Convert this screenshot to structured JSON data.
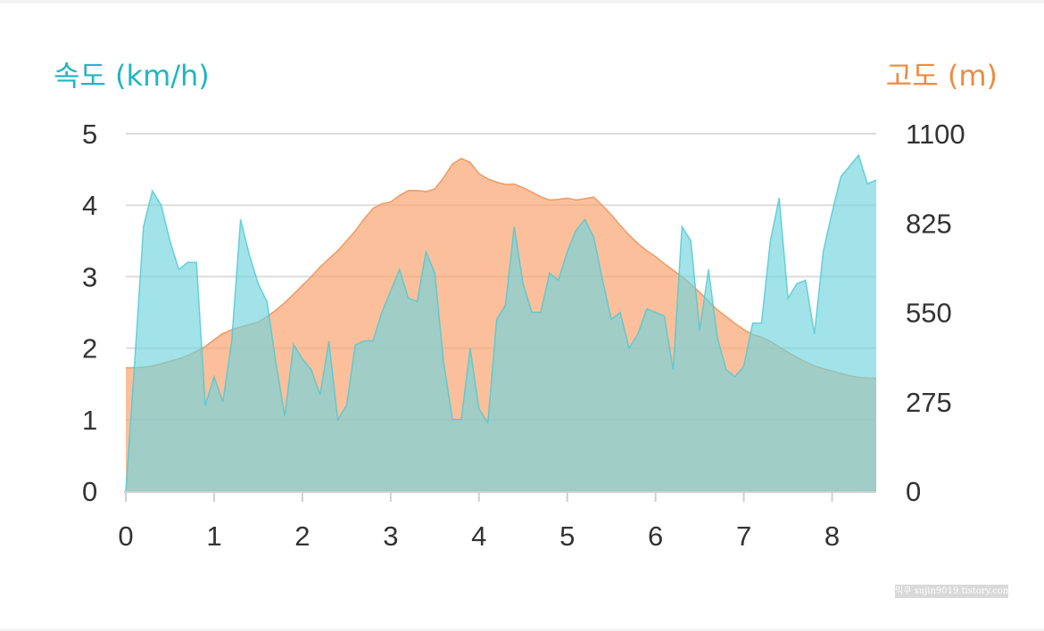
{
  "chart_data": {
    "type": "area",
    "left_axis": {
      "title": "속도 (km/h)",
      "color": "#1fb6c1",
      "ylim": [
        0,
        5
      ],
      "ticks": [
        "0",
        "1",
        "2",
        "3",
        "4",
        "5"
      ]
    },
    "right_axis": {
      "title": "고도 (m)",
      "color": "#ef8a3f",
      "ylim": [
        0,
        1100
      ],
      "ticks": [
        "0",
        "275",
        "550",
        "825",
        "1100"
      ]
    },
    "x_axis": {
      "xlim": [
        0,
        8.5
      ],
      "ticks": [
        "0",
        "1",
        "2",
        "3",
        "4",
        "5",
        "6",
        "7",
        "8"
      ]
    },
    "grid": true,
    "series": [
      {
        "axis": "right",
        "fill": "#f9a571",
        "stroke": "#ee8a4b",
        "x": [
          0,
          0.1,
          0.2,
          0.3,
          0.4,
          0.5,
          0.6,
          0.7,
          0.8,
          0.9,
          1.0,
          1.1,
          1.2,
          1.3,
          1.4,
          1.5,
          1.6,
          1.7,
          1.8,
          1.9,
          2.0,
          2.1,
          2.2,
          2.3,
          2.4,
          2.5,
          2.6,
          2.7,
          2.8,
          2.9,
          3.0,
          3.1,
          3.2,
          3.3,
          3.4,
          3.5,
          3.6,
          3.7,
          3.8,
          3.9,
          4.0,
          4.1,
          4.2,
          4.3,
          4.4,
          4.5,
          4.6,
          4.7,
          4.8,
          4.9,
          5.0,
          5.1,
          5.2,
          5.3,
          5.4,
          5.5,
          5.6,
          5.7,
          5.8,
          5.9,
          6.0,
          6.1,
          6.2,
          6.3,
          6.4,
          6.5,
          6.6,
          6.7,
          6.8,
          6.9,
          7.0,
          7.1,
          7.2,
          7.3,
          7.4,
          7.5,
          7.6,
          7.7,
          7.8,
          7.9,
          8.0,
          8.1,
          8.2,
          8.3,
          8.4,
          8.5
        ],
        "values": [
          379,
          380,
          381,
          385,
          392,
          400,
          407,
          417,
          430,
          445,
          466,
          485,
          497,
          505,
          513,
          520,
          537,
          557,
          580,
          606,
          633,
          660,
          690,
          715,
          740,
          770,
          801,
          838,
          870,
          884,
          890,
          910,
          925,
          925,
          922,
          930,
          965,
          1007,
          1024,
          1012,
          977,
          961,
          951,
          944,
          945,
          934,
          920,
          906,
          896,
          898,
          902,
          896,
          900,
          905,
          878,
          850,
          818,
          788,
          762,
          740,
          722,
          700,
          680,
          660,
          637,
          612,
          585,
          558,
          537,
          516,
          497,
          482,
          474,
          461,
          444,
          427,
          412,
          398,
          385,
          377,
          370,
          362,
          355,
          350,
          348,
          347
        ]
      },
      {
        "axis": "left",
        "fill": "#6fd4dd",
        "stroke": "#4cc8d3",
        "x": [
          0,
          0.1,
          0.2,
          0.3,
          0.4,
          0.5,
          0.6,
          0.7,
          0.8,
          0.9,
          1.0,
          1.1,
          1.2,
          1.3,
          1.4,
          1.5,
          1.6,
          1.7,
          1.8,
          1.9,
          2.0,
          2.1,
          2.2,
          2.3,
          2.4,
          2.5,
          2.6,
          2.7,
          2.8,
          2.9,
          3.0,
          3.1,
          3.2,
          3.3,
          3.4,
          3.5,
          3.6,
          3.7,
          3.8,
          3.9,
          4.0,
          4.1,
          4.2,
          4.3,
          4.4,
          4.5,
          4.6,
          4.7,
          4.8,
          4.9,
          5.0,
          5.1,
          5.2,
          5.3,
          5.4,
          5.5,
          5.6,
          5.7,
          5.8,
          5.9,
          6.0,
          6.1,
          6.2,
          6.3,
          6.4,
          6.5,
          6.6,
          6.7,
          6.8,
          6.9,
          7.0,
          7.1,
          7.2,
          7.3,
          7.4,
          7.5,
          7.6,
          7.7,
          7.8,
          7.9,
          8.0,
          8.1,
          8.2,
          8.3,
          8.4,
          8.5
        ],
        "values": [
          0,
          1.8,
          3.7,
          4.2,
          4.0,
          3.5,
          3.1,
          3.2,
          3.2,
          1.2,
          1.6,
          1.25,
          2.1,
          3.8,
          3.3,
          2.9,
          2.65,
          1.8,
          1.05,
          2.05,
          1.85,
          1.7,
          1.35,
          2.1,
          1.0,
          1.2,
          2.05,
          2.1,
          2.1,
          2.5,
          2.8,
          3.1,
          2.7,
          2.65,
          3.35,
          3.05,
          1.8,
          1.0,
          1.0,
          2.0,
          1.15,
          0.95,
          2.4,
          2.6,
          3.7,
          2.9,
          2.5,
          2.5,
          3.05,
          2.95,
          3.35,
          3.65,
          3.8,
          3.55,
          2.95,
          2.4,
          2.5,
          2.0,
          2.2,
          2.55,
          2.5,
          2.45,
          1.7,
          3.7,
          3.5,
          2.25,
          3.1,
          2.15,
          1.7,
          1.6,
          1.75,
          2.35,
          2.35,
          3.5,
          4.1,
          2.7,
          2.9,
          2.95,
          2.2,
          3.35,
          3.9,
          4.4,
          4.55,
          4.7,
          4.3,
          4.35
        ]
      }
    ]
  },
  "watermark": "믹쿠 sujin9019.tistory.com"
}
